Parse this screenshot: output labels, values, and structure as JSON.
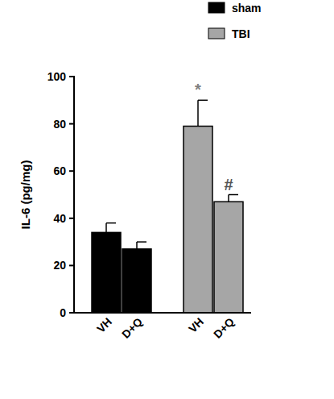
{
  "chart_data": {
    "type": "bar",
    "y_label": "IL-6 (pg/mg)",
    "categories": [
      "VH",
      "D+Q",
      "VH",
      "D+Q"
    ],
    "series": [
      {
        "name": "sham",
        "color": "#000000",
        "values": [
          34,
          27,
          null,
          null
        ],
        "errors": [
          4,
          3,
          null,
          null
        ],
        "annotations": [
          null,
          null,
          null,
          null
        ]
      },
      {
        "name": "TBI",
        "color": "#a6a6a6",
        "values": [
          null,
          null,
          79,
          47
        ],
        "errors": [
          null,
          null,
          11,
          3
        ],
        "annotations": [
          null,
          null,
          "*",
          "#"
        ]
      }
    ],
    "ylim": [
      0,
      100
    ],
    "yticks": [
      0,
      20,
      40,
      60,
      80,
      100
    ],
    "legend": "top-right",
    "grid": false
  }
}
